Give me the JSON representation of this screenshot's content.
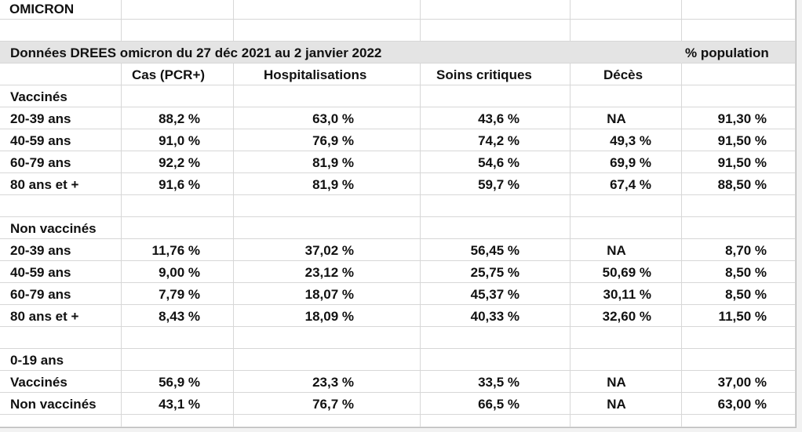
{
  "sheet_title": "OMICRON",
  "banner": {
    "title": "Données DREES omicron du 27 déc 2021 au 2 janvier 2022",
    "right_label": "% population"
  },
  "columns": [
    "Cas (PCR+)",
    "Hospitalisations",
    "Soins critiques",
    "Décès"
  ],
  "groups": {
    "vaccinated": {
      "label": "Vaccinés",
      "rows": [
        {
          "age": "20-39 ans",
          "cas": "88,2 %",
          "hosp": "63,0 %",
          "soins": "43,6 %",
          "deces": "NA",
          "pop": "91,30 %"
        },
        {
          "age": "40-59 ans",
          "cas": "91,0 %",
          "hosp": "76,9 %",
          "soins": "74,2 %",
          "deces": "49,3 %",
          "pop": "91,50 %"
        },
        {
          "age": "60-79 ans",
          "cas": "92,2 %",
          "hosp": "81,9 %",
          "soins": "54,6 %",
          "deces": "69,9 %",
          "pop": "91,50 %"
        },
        {
          "age": "80 ans et +",
          "cas": "91,6 %",
          "hosp": "81,9 %",
          "soins": "59,7 %",
          "deces": "67,4 %",
          "pop": "88,50 %"
        }
      ]
    },
    "unvaccinated": {
      "label": "Non vaccinés",
      "rows": [
        {
          "age": "20-39 ans",
          "cas": "11,76 %",
          "hosp": "37,02 %",
          "soins": "56,45 %",
          "deces": "NA",
          "pop": "8,70 %"
        },
        {
          "age": "40-59 ans",
          "cas": "9,00 %",
          "hosp": "23,12 %",
          "soins": "25,75 %",
          "deces": "50,69 %",
          "pop": "8,50 %"
        },
        {
          "age": "60-79 ans",
          "cas": "7,79 %",
          "hosp": "18,07 %",
          "soins": "45,37 %",
          "deces": "30,11 %",
          "pop": "8,50 %"
        },
        {
          "age": "80 ans et +",
          "cas": "8,43 %",
          "hosp": "18,09 %",
          "soins": "40,33 %",
          "deces": "32,60 %",
          "pop": "11,50 %"
        }
      ]
    },
    "young": {
      "label": "0-19 ans",
      "rows": [
        {
          "age": "Vaccinés",
          "cas": "56,9 %",
          "hosp": "23,3 %",
          "soins": "33,5 %",
          "deces": "NA",
          "pop": "37,00 %"
        },
        {
          "age": "Non vaccinés",
          "cas": "43,1 %",
          "hosp": "76,7 %",
          "soins": "66,5 %",
          "deces": "NA",
          "pop": "63,00 %"
        }
      ]
    }
  },
  "colors": {
    "orange": "#e67d19",
    "red": "#c0272d",
    "olive": "#7b7a14",
    "band": "#e4e4e4",
    "grid": "#d7d7d7"
  }
}
